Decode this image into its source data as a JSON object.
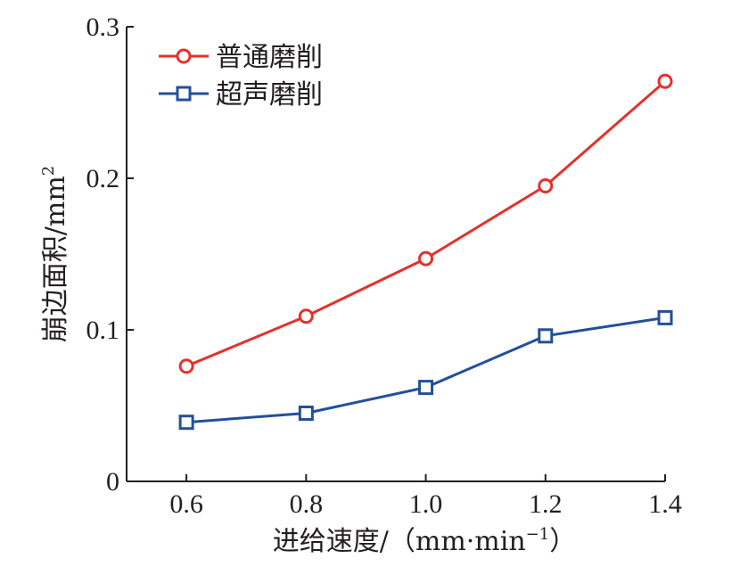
{
  "chart_data": {
    "type": "line",
    "xlabel_text": "进给速度/（mm·min",
    "xlabel_sup": "−1",
    "xlabel_close": "）",
    "ylabel_text": "崩边面积/mm",
    "ylabel_sup": "2",
    "x": [
      0.6,
      0.8,
      1.0,
      1.2,
      1.4
    ],
    "x_tick_labels": [
      "0.6",
      "0.8",
      "1.0",
      "1.2",
      "1.4"
    ],
    "y_ticks": [
      0,
      0.1,
      0.2,
      0.3
    ],
    "y_tick_labels": [
      "0",
      "0.1",
      "0.2",
      "0.3"
    ],
    "xlim": [
      0.5,
      1.4
    ],
    "ylim": [
      0,
      0.3
    ],
    "legend_position": "top-left",
    "grid": false,
    "series": [
      {
        "name": "普通磨削",
        "marker": "circle",
        "color": "#e2322c",
        "values": [
          0.076,
          0.109,
          0.147,
          0.195,
          0.264
        ]
      },
      {
        "name": "超声磨削",
        "marker": "square",
        "color": "#23509b",
        "values": [
          0.039,
          0.045,
          0.062,
          0.096,
          0.108
        ]
      }
    ]
  }
}
